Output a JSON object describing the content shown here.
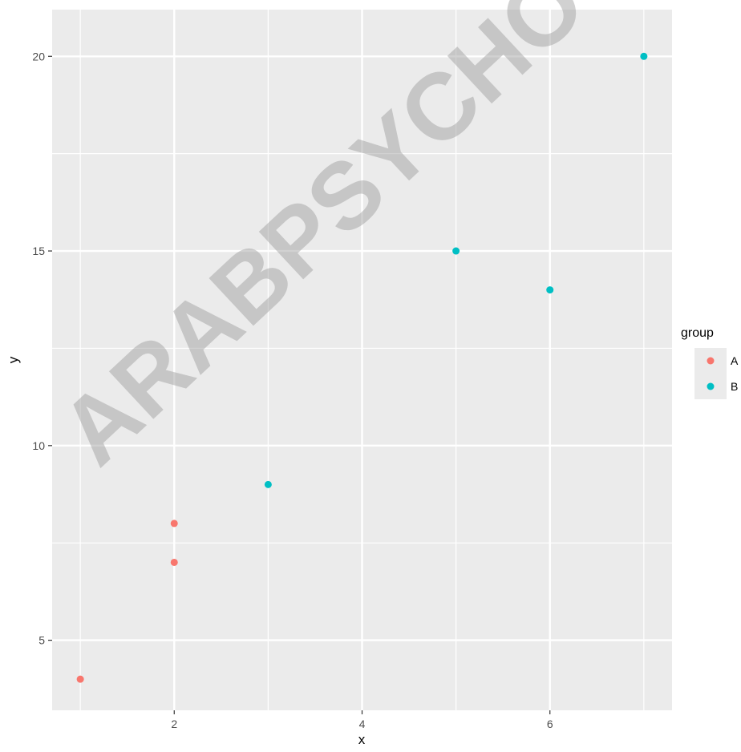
{
  "chart_data": {
    "type": "scatter",
    "title": "",
    "xlabel": "x",
    "ylabel": "y",
    "xlim": [
      0.7,
      7.3
    ],
    "ylim": [
      3.2,
      21.2
    ],
    "x_ticks": [
      2,
      4,
      6
    ],
    "y_ticks": [
      5,
      10,
      15,
      20
    ],
    "grid": true,
    "legend": {
      "title": "group",
      "placement": "right"
    },
    "series": [
      {
        "name": "A",
        "color": "#F8766D",
        "points": [
          {
            "x": 1,
            "y": 4
          },
          {
            "x": 2,
            "y": 7
          },
          {
            "x": 2,
            "y": 8
          }
        ]
      },
      {
        "name": "B",
        "color": "#00BFC4",
        "points": [
          {
            "x": 3,
            "y": 9
          },
          {
            "x": 5,
            "y": 15
          },
          {
            "x": 6,
            "y": 14
          },
          {
            "x": 7,
            "y": 20
          }
        ]
      }
    ]
  },
  "watermark": "ARABPSYCHO"
}
